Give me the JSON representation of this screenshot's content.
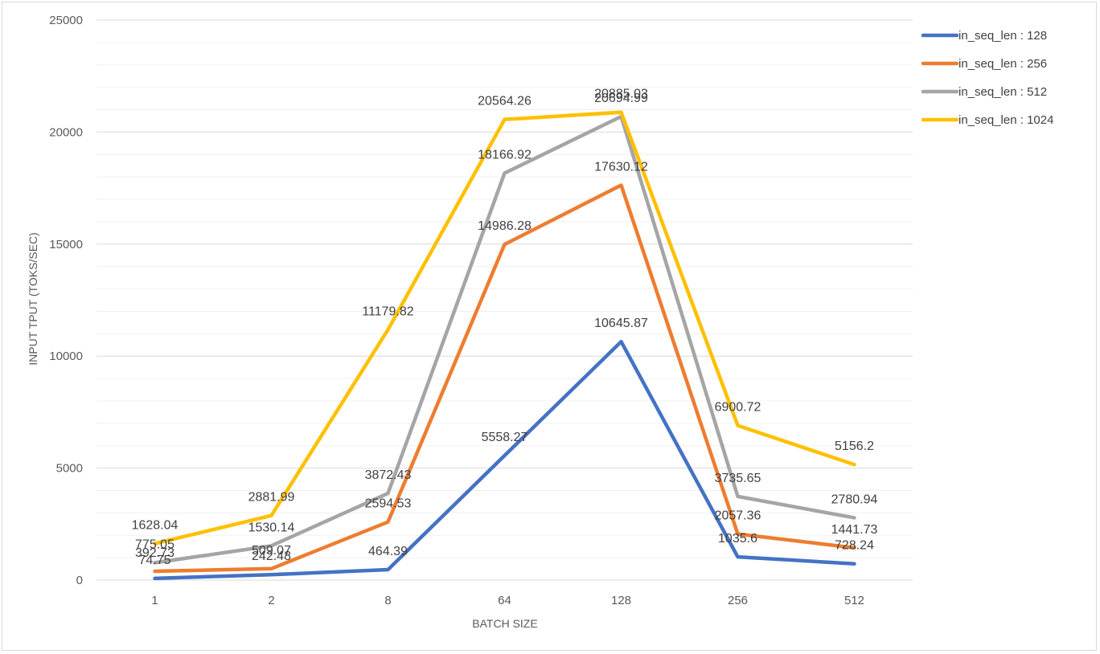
{
  "chart_data": {
    "type": "line",
    "title": "",
    "xlabel": "BATCH SIZE",
    "ylabel": "INPUT TPUT (TOKS/SEC)",
    "categories": [
      "1",
      "2",
      "8",
      "64",
      "128",
      "256",
      "512"
    ],
    "ylim": [
      0,
      25000
    ],
    "yticks": [
      "0",
      "5000",
      "10000",
      "15000",
      "20000",
      "25000"
    ],
    "grid": true,
    "legend_position": "right",
    "series": [
      {
        "name": "in_seq_len : 128",
        "color": "#4472C4",
        "values": [
          74.75,
          242.48,
          464.39,
          5558.27,
          10645.87,
          1035.6,
          728.24
        ],
        "labels": [
          "74.75",
          "242.48",
          "464.39",
          "5558.27",
          "10645.87",
          "1035.6",
          "728.24"
        ]
      },
      {
        "name": "in_seq_len : 256",
        "color": "#ED7D31",
        "values": [
          392.73,
          509.07,
          2594.53,
          14986.28,
          17630.12,
          2057.36,
          1441.73
        ],
        "labels": [
          "392.73",
          "509.07",
          "2594.53",
          "14986.28",
          "17630.12",
          "2057.36",
          "1441.73"
        ]
      },
      {
        "name": "in_seq_len : 512",
        "color": "#A5A5A5",
        "values": [
          775.05,
          1530.14,
          3872.43,
          18166.92,
          20694.99,
          3735.65,
          2780.94
        ],
        "labels": [
          "775.05",
          "1530.14",
          "3872.43",
          "18166.92",
          "20694.99",
          "3735.65",
          "2780.94"
        ]
      },
      {
        "name": "in_seq_len : 1024",
        "color": "#FFC000",
        "values": [
          1628.04,
          2881.99,
          11179.82,
          20564.26,
          20885.03,
          6900.72,
          5156.2
        ],
        "labels": [
          "1628.04",
          "2881.99",
          "11179.82",
          "20564.26",
          "20885.03",
          "6900.72",
          "5156.2"
        ]
      }
    ]
  }
}
